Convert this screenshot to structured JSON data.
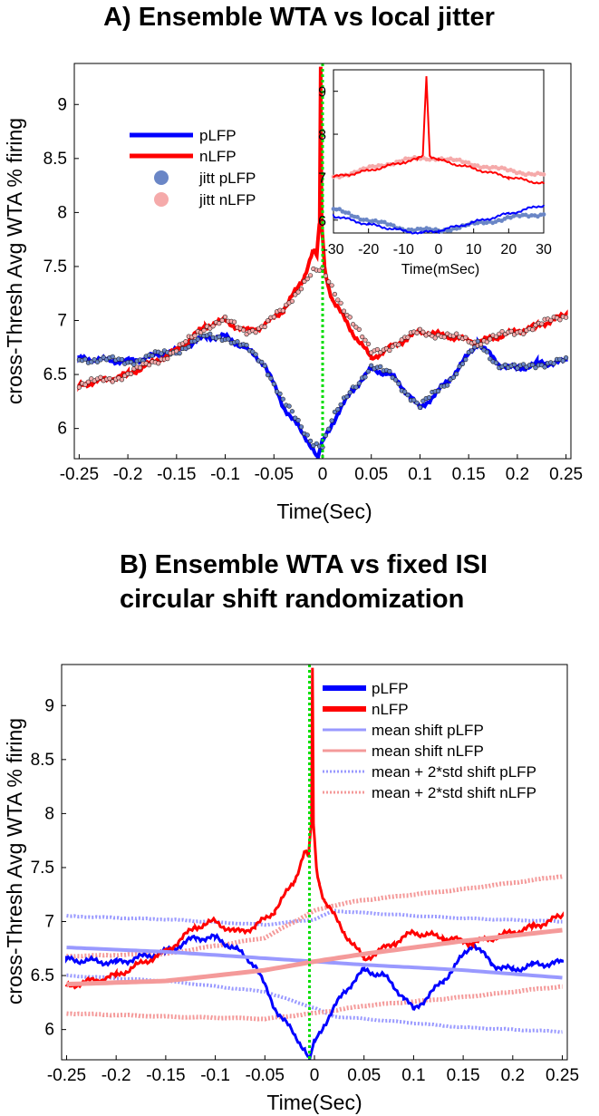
{
  "colors": {
    "pLFP": "#0000ff",
    "nLFP": "#ff0000",
    "jitt_pLFP": "#6a86c6",
    "jitt_nLFP": "#f5aaaa",
    "shift_pLFP": "#9999ff",
    "shift_nLFP": "#f49a9a",
    "zero_line": "#00dd00"
  },
  "chart_data": [
    {
      "type": "line",
      "title": "A) Ensemble WTA vs local jitter",
      "xlabel": "Time(Sec)",
      "ylabel": "cross-Thresh Avg WTA % firing",
      "xlim": [
        -0.255,
        0.255
      ],
      "ylim": [
        5.72,
        9.38
      ],
      "xticks": [
        "-0.25",
        "-0.2",
        "-0.15",
        "-0.1",
        "-0.05",
        "0",
        "0.05",
        "0.1",
        "0.15",
        "0.2",
        "0.25"
      ],
      "yticks": [
        "6",
        "6.5",
        "7",
        "7.5",
        "8",
        "8.5",
        "9"
      ],
      "legend_position": "upper-left",
      "series": [
        {
          "name": "pLFP",
          "style": "line",
          "x": [
            -0.25,
            -0.2,
            -0.15,
            -0.12,
            -0.1,
            -0.08,
            -0.06,
            -0.04,
            -0.02,
            -0.01,
            -0.005,
            0,
            0.01,
            0.03,
            0.05,
            0.07,
            0.09,
            0.1,
            0.13,
            0.16,
            0.18,
            0.2,
            0.22,
            0.25
          ],
          "y": [
            6.65,
            6.62,
            6.72,
            6.85,
            6.85,
            6.75,
            6.6,
            6.2,
            5.95,
            5.82,
            5.72,
            5.88,
            6.05,
            6.35,
            6.55,
            6.5,
            6.3,
            6.18,
            6.45,
            6.8,
            6.6,
            6.55,
            6.6,
            6.62
          ]
        },
        {
          "name": "nLFP",
          "style": "line",
          "x": [
            -0.25,
            -0.2,
            -0.15,
            -0.12,
            -0.1,
            -0.08,
            -0.06,
            -0.04,
            -0.02,
            -0.01,
            -0.006,
            -0.003,
            -0.002,
            -0.001,
            0.002,
            0.005,
            0.01,
            0.03,
            0.05,
            0.08,
            0.1,
            0.13,
            0.16,
            0.2,
            0.22,
            0.25
          ],
          "y": [
            6.4,
            6.5,
            6.72,
            6.95,
            7.0,
            6.9,
            6.95,
            7.1,
            7.38,
            7.65,
            7.6,
            7.9,
            9.35,
            7.9,
            7.5,
            7.35,
            7.2,
            6.9,
            6.65,
            6.8,
            6.9,
            6.85,
            6.8,
            6.9,
            6.95,
            7.05
          ]
        },
        {
          "name": "jitt pLFP",
          "style": "markers",
          "x": [
            -0.25,
            -0.2,
            -0.15,
            -0.12,
            -0.1,
            -0.08,
            -0.06,
            -0.04,
            -0.02,
            -0.01,
            0,
            0.01,
            0.03,
            0.05,
            0.07,
            0.09,
            0.1,
            0.13,
            0.16,
            0.18,
            0.2,
            0.22,
            0.25
          ],
          "y": [
            6.65,
            6.62,
            6.72,
            6.85,
            6.85,
            6.75,
            6.6,
            6.25,
            5.98,
            5.88,
            5.85,
            6.08,
            6.37,
            6.57,
            6.5,
            6.3,
            6.2,
            6.45,
            6.78,
            6.6,
            6.55,
            6.6,
            6.62
          ]
        },
        {
          "name": "jitt nLFP",
          "style": "markers",
          "x": [
            -0.25,
            -0.2,
            -0.15,
            -0.12,
            -0.1,
            -0.08,
            -0.06,
            -0.04,
            -0.02,
            -0.01,
            0,
            0.01,
            0.03,
            0.05,
            0.08,
            0.1,
            0.13,
            0.16,
            0.2,
            0.22,
            0.25
          ],
          "y": [
            6.4,
            6.5,
            6.72,
            6.95,
            7.0,
            6.9,
            6.95,
            7.1,
            7.35,
            7.45,
            7.45,
            7.3,
            7.0,
            6.7,
            6.8,
            6.9,
            6.85,
            6.8,
            6.9,
            6.95,
            7.05
          ]
        }
      ],
      "inset": {
        "xlabel": "Time(mSec)",
        "xlim": [
          -30,
          30
        ],
        "ylim": [
          5.7,
          9.5
        ],
        "xticks": [
          "-30",
          "-20",
          "-10",
          "0",
          "10",
          "20",
          "30"
        ],
        "yticks": [
          "6",
          "7",
          "8",
          "9"
        ],
        "series": [
          {
            "name": "pLFP",
            "x": [
              -30,
              -20,
              -10,
              -5,
              0,
              10,
              20,
              30
            ],
            "y": [
              6.1,
              5.9,
              5.75,
              5.7,
              5.75,
              5.95,
              6.15,
              6.35
            ]
          },
          {
            "name": "nLFP",
            "x": [
              -30,
              -20,
              -10,
              -6,
              -4.5,
              -3.5,
              -2.5,
              0,
              10,
              20,
              30
            ],
            "y": [
              7.0,
              7.15,
              7.35,
              7.42,
              7.5,
              9.35,
              7.5,
              7.4,
              7.2,
              7.0,
              6.85
            ]
          },
          {
            "name": "jitt pLFP",
            "x": [
              -30,
              -20,
              -10,
              0,
              10,
              20,
              30
            ],
            "y": [
              6.25,
              6.0,
              5.8,
              5.75,
              5.9,
              6.05,
              6.15
            ]
          },
          {
            "name": "jitt nLFP",
            "x": [
              -30,
              -20,
              -10,
              0,
              10,
              20,
              30
            ],
            "y": [
              7.0,
              7.2,
              7.4,
              7.45,
              7.3,
              7.15,
              7.05
            ]
          }
        ]
      }
    },
    {
      "type": "line",
      "title": "B) Ensemble WTA vs fixed ISI circular shift randomization",
      "title_lines": [
        "B) Ensemble WTA vs fixed ISI",
        "circular shift randomization"
      ],
      "xlabel": "Time(Sec)",
      "ylabel": "cross-Thresh Avg WTA % firing",
      "xlim": [
        -0.255,
        0.255
      ],
      "ylim": [
        5.72,
        9.38
      ],
      "xticks": [
        "-0.25",
        "-0.2",
        "-0.15",
        "-0.1",
        "-0.05",
        "0",
        "0.05",
        "0.1",
        "0.15",
        "0.2",
        "0.25"
      ],
      "yticks": [
        "6",
        "6.5",
        "7",
        "7.5",
        "8",
        "8.5",
        "9"
      ],
      "legend_position": "top-right",
      "series": [
        {
          "name": "pLFP",
          "style": "line",
          "x": [
            -0.25,
            -0.2,
            -0.15,
            -0.12,
            -0.1,
            -0.08,
            -0.06,
            -0.04,
            -0.02,
            -0.01,
            -0.005,
            0,
            0.01,
            0.03,
            0.05,
            0.07,
            0.09,
            0.1,
            0.13,
            0.16,
            0.18,
            0.2,
            0.22,
            0.25
          ],
          "y": [
            6.65,
            6.62,
            6.72,
            6.85,
            6.85,
            6.75,
            6.6,
            6.2,
            5.95,
            5.82,
            5.72,
            5.88,
            6.05,
            6.35,
            6.55,
            6.5,
            6.3,
            6.18,
            6.45,
            6.8,
            6.6,
            6.55,
            6.6,
            6.62
          ]
        },
        {
          "name": "nLFP",
          "style": "line",
          "x": [
            -0.25,
            -0.2,
            -0.15,
            -0.12,
            -0.1,
            -0.08,
            -0.06,
            -0.04,
            -0.02,
            -0.01,
            -0.006,
            -0.003,
            -0.002,
            -0.001,
            0.002,
            0.005,
            0.01,
            0.03,
            0.05,
            0.08,
            0.1,
            0.13,
            0.16,
            0.2,
            0.22,
            0.25
          ],
          "y": [
            6.4,
            6.5,
            6.72,
            6.95,
            7.0,
            6.9,
            6.95,
            7.1,
            7.38,
            7.65,
            7.6,
            7.9,
            9.35,
            7.9,
            7.5,
            7.35,
            7.2,
            6.9,
            6.65,
            6.8,
            6.9,
            6.85,
            6.8,
            6.9,
            6.95,
            7.05
          ]
        },
        {
          "name": "mean shift pLFP",
          "style": "line",
          "x": [
            -0.25,
            -0.15,
            -0.05,
            0,
            0.05,
            0.15,
            0.25
          ],
          "y": [
            6.76,
            6.72,
            6.66,
            6.63,
            6.6,
            6.55,
            6.48
          ]
        },
        {
          "name": "mean shift nLFP",
          "style": "line",
          "x": [
            -0.25,
            -0.15,
            -0.05,
            0,
            0.05,
            0.15,
            0.25
          ],
          "y": [
            6.42,
            6.45,
            6.55,
            6.63,
            6.7,
            6.82,
            6.92
          ]
        },
        {
          "name": "mean + 2*std shift pLFP",
          "style": "dotted",
          "x": [
            -0.25,
            -0.15,
            -0.05,
            0,
            0.02,
            0.05,
            0.15,
            0.25
          ],
          "y": [
            7.05,
            7.02,
            6.97,
            7.02,
            7.1,
            7.08,
            7.03,
            7.0
          ],
          "lower_x": [
            -0.25,
            -0.15,
            -0.05,
            0,
            0.02,
            0.05,
            0.15,
            0.25
          ],
          "lower_y": [
            6.5,
            6.45,
            6.35,
            6.2,
            6.12,
            6.1,
            6.02,
            5.98
          ]
        },
        {
          "name": "mean + 2*std shift nLFP",
          "style": "dotted",
          "x": [
            -0.25,
            -0.15,
            -0.05,
            0,
            0.02,
            0.05,
            0.15,
            0.25
          ],
          "y": [
            6.68,
            6.7,
            6.85,
            7.1,
            7.15,
            7.2,
            7.3,
            7.42
          ],
          "lower_x": [
            -0.25,
            -0.15,
            -0.05,
            0,
            0.05,
            0.15,
            0.25
          ],
          "lower_y": [
            6.15,
            6.12,
            6.1,
            6.15,
            6.22,
            6.3,
            6.4
          ]
        }
      ]
    }
  ]
}
